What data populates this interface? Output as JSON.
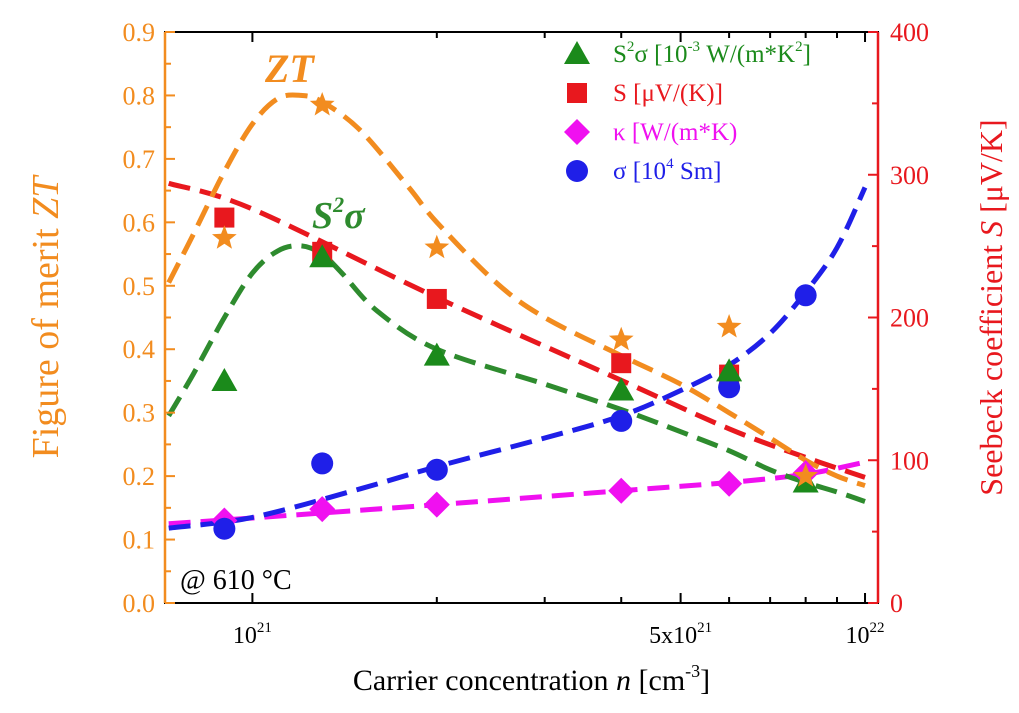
{
  "chart_data": {
    "type": "scatter",
    "x_axis": {
      "scale": "log",
      "range": [
        720000000000000000000,
        10500000000000000000000
      ],
      "label_prefix": "Carrier concentration ",
      "label_var": "n",
      "label_unit": " [cm",
      "label_exp": "-3",
      "label_close": "]",
      "ticks": [
        {
          "value": 1e+21,
          "mant": "10",
          "exp": "21"
        },
        {
          "value": 5e+21,
          "mant": "5x10",
          "exp": "21"
        },
        {
          "value": 1e+22,
          "mant": "10",
          "exp": "22"
        }
      ],
      "minor_ticks": [
        2e+21,
        3e+21,
        4e+21,
        6e+21,
        7e+21,
        8e+21,
        9e+21
      ]
    },
    "y_left": {
      "range": [
        0,
        0.9
      ],
      "label_prefix": "Figure of merit ",
      "label_var": "ZT",
      "ticks": [
        "0.0",
        "0.1",
        "0.2",
        "0.3",
        "0.4",
        "0.5",
        "0.6",
        "0.7",
        "0.8",
        "0.9"
      ],
      "color": "#F28C1F"
    },
    "y_right": {
      "range": [
        0,
        400
      ],
      "label_prefix": "Seebeck coefficient ",
      "label_var": "S",
      "label_unit": " [μV/K]",
      "ticks": [
        "0",
        "100",
        "200",
        "300",
        "400"
      ],
      "color": "#E8181E"
    },
    "annotation": "@ 610 °C",
    "curve_labels": {
      "zt": {
        "text": "ZT",
        "color": "#F28C1F"
      },
      "s2s": {
        "base": "S",
        "sup": "2",
        "sym": "σ",
        "color": "#2E8B2E"
      }
    },
    "legend": {
      "placement": "top-right",
      "entries": [
        {
          "key": "s2s",
          "pre": "S",
          "sup1": "2",
          "mid": "σ [10",
          "sup2": "-3",
          "post": " W/(m*K",
          "sup3": "2",
          "end": "]",
          "color": "#1B8A1B",
          "marker": "triangle"
        },
        {
          "key": "S",
          "pre": "S [μV/(K)]",
          "color": "#E8181E",
          "marker": "square"
        },
        {
          "key": "kappa",
          "pre": "κ [W/(m*K)",
          "color": "#F010F0",
          "marker": "diamond"
        },
        {
          "key": "sigma",
          "pre": "σ [10",
          "sup1": "4",
          "post": " Sm]",
          "color": "#1F1FE8",
          "marker": "circle"
        }
      ]
    },
    "series": [
      {
        "key": "ZT",
        "axis": "left",
        "color": "#F28C1F",
        "marker": "star",
        "x": [
          9e+20,
          1.3e+21,
          2e+21,
          4e+21,
          6e+21,
          8e+21
        ],
        "y": [
          0.575,
          0.785,
          0.56,
          0.415,
          0.435,
          0.2
        ],
        "fit_x": [
          7.3e+20,
          8e+20,
          9e+20,
          1e+21,
          1.1e+21,
          1.2e+21,
          1.3e+21,
          1.5e+21,
          1.8e+21,
          2e+21,
          2.5e+21,
          3e+21,
          4e+21,
          5e+21,
          6e+21,
          7e+21,
          8e+21,
          9e+21,
          1e+22
        ],
        "fit_y": [
          0.505,
          0.58,
          0.68,
          0.755,
          0.795,
          0.8,
          0.79,
          0.745,
          0.655,
          0.6,
          0.505,
          0.45,
          0.39,
          0.345,
          0.3,
          0.26,
          0.225,
          0.2,
          0.185
        ]
      },
      {
        "key": "s2s",
        "axis": "left",
        "color": "#1B8A1B",
        "fit_color": "#2E8B2E",
        "marker": "triangle",
        "x": [
          9e+20,
          1.3e+21,
          2e+21,
          4e+21,
          6e+21,
          8e+21
        ],
        "y": [
          0.35,
          0.545,
          0.39,
          0.335,
          0.365,
          0.19
        ],
        "fit_x": [
          7.3e+20,
          8e+20,
          9e+20,
          1e+21,
          1.1e+21,
          1.2e+21,
          1.3e+21,
          1.4e+21,
          1.6e+21,
          2e+21,
          3e+21,
          4e+21,
          5e+21,
          6e+21,
          7e+21,
          8e+21,
          9e+21,
          1e+22
        ],
        "fit_y": [
          0.295,
          0.36,
          0.45,
          0.52,
          0.555,
          0.563,
          0.55,
          0.52,
          0.46,
          0.4,
          0.345,
          0.305,
          0.27,
          0.24,
          0.21,
          0.19,
          0.175,
          0.16
        ]
      },
      {
        "key": "S",
        "axis": "right",
        "color": "#E8181E",
        "marker": "square",
        "x": [
          9e+20,
          1.3e+21,
          2e+21,
          4e+21,
          6e+21
        ],
        "y": [
          270,
          246,
          213,
          168,
          160
        ],
        "fit_x": [
          7.3e+20,
          1e+21,
          2e+21,
          4e+21,
          6e+21,
          8e+21,
          1e+22
        ],
        "fit_y": [
          294,
          276,
          214,
          156,
          122,
          102,
          88
        ]
      },
      {
        "key": "kappa",
        "axis": "left",
        "color": "#F010F0",
        "marker": "diamond",
        "x": [
          9e+20,
          1.3e+21,
          2e+21,
          4e+21,
          6e+21,
          8e+21
        ],
        "y": [
          0.13,
          0.148,
          0.155,
          0.177,
          0.188,
          0.205
        ],
        "fit_x": [
          7.3e+20,
          1e+21,
          2e+21,
          4e+21,
          6e+21,
          8e+21,
          1e+22
        ],
        "fit_y": [
          0.125,
          0.134,
          0.155,
          0.177,
          0.19,
          0.203,
          0.222
        ]
      },
      {
        "key": "sigma",
        "axis": "left",
        "color": "#1F1FE8",
        "marker": "circle",
        "x": [
          9e+20,
          1.3e+21,
          2e+21,
          4e+21,
          6e+21,
          8e+21
        ],
        "y": [
          0.117,
          0.22,
          0.21,
          0.287,
          0.34,
          0.485
        ],
        "fit_x": [
          7.3e+20,
          1e+21,
          1.5e+21,
          2e+21,
          3e+21,
          4e+21,
          5e+21,
          6e+21,
          7e+21,
          8e+21,
          9e+21,
          1e+22
        ],
        "fit_y": [
          0.118,
          0.135,
          0.18,
          0.215,
          0.26,
          0.295,
          0.335,
          0.375,
          0.425,
          0.49,
          0.56,
          0.655
        ]
      }
    ]
  }
}
